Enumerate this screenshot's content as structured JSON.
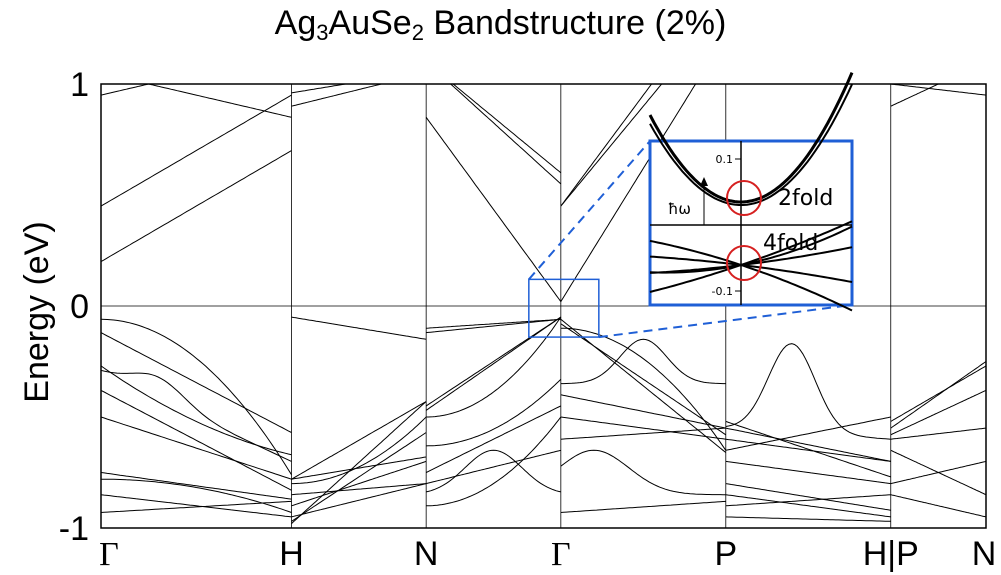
{
  "title": {
    "part1": "Ag",
    "sub1": "3",
    "part2": "AuSe",
    "sub2": "2",
    "part3": " Bandstructure (2%)"
  },
  "chart_data": {
    "type": "line",
    "ylabel": "Energy (eV)",
    "ylim": [
      -1,
      1
    ],
    "y_ticks": [
      {
        "value": -1,
        "label": "-1"
      },
      {
        "value": 0,
        "label": "0"
      },
      {
        "value": 1,
        "label": "1"
      }
    ],
    "k_points": [
      {
        "label": "Γ",
        "pos": 0.0
      },
      {
        "label": "H",
        "pos": 1.0
      },
      {
        "label": "N",
        "pos": 1.707
      },
      {
        "label": "Γ",
        "pos": 2.414
      },
      {
        "label": "P",
        "pos": 3.28
      },
      {
        "label": "H|P",
        "pos": 4.146
      },
      {
        "label": "N",
        "pos": 4.646
      }
    ],
    "fermi_level": 0,
    "conduction_band_min": {
      "k": "Γ",
      "energy": 0.02
    },
    "valence_band_max": {
      "k": "Γ",
      "energy": -0.08
    },
    "inset": {
      "y_ticks": [
        {
          "value": 0.1,
          "label": "0.1"
        },
        {
          "value": -0.1,
          "label": "-0.1"
        }
      ],
      "labels": {
        "upper": "2fold",
        "lower": "4fold",
        "arrow": "ħω"
      }
    }
  }
}
